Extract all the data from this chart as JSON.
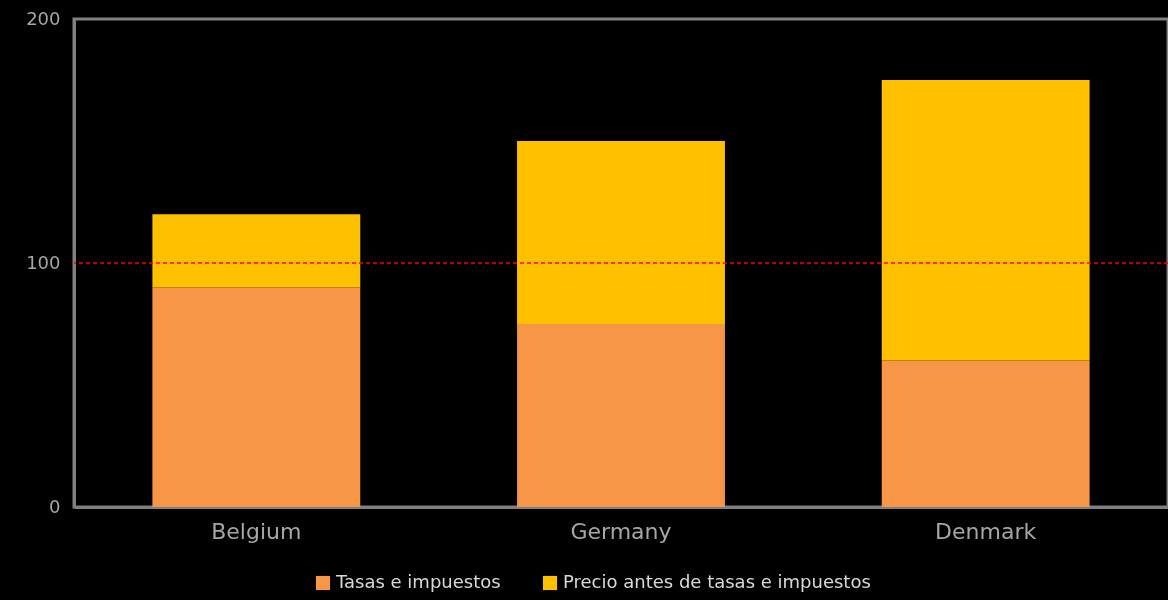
{
  "chart_data": {
    "type": "bar",
    "stacked": true,
    "categories": [
      "Belgium",
      "Germany",
      "Denmark"
    ],
    "series": [
      {
        "name": "Tasas e impuestos",
        "color": "#f79646",
        "values": [
          90,
          75,
          60
        ]
      },
      {
        "name": "Precio antes de tasas e impuestos",
        "color": "#ffc000",
        "values": [
          30,
          75,
          115
        ]
      }
    ],
    "ylim": [
      0,
      200
    ],
    "yticks": [
      0,
      100,
      200
    ],
    "grid": false,
    "legend": "bottom",
    "ref_lines": [
      {
        "axis": "y",
        "value": 100,
        "color": "#ff0000",
        "line_style": "dashed"
      }
    ]
  }
}
